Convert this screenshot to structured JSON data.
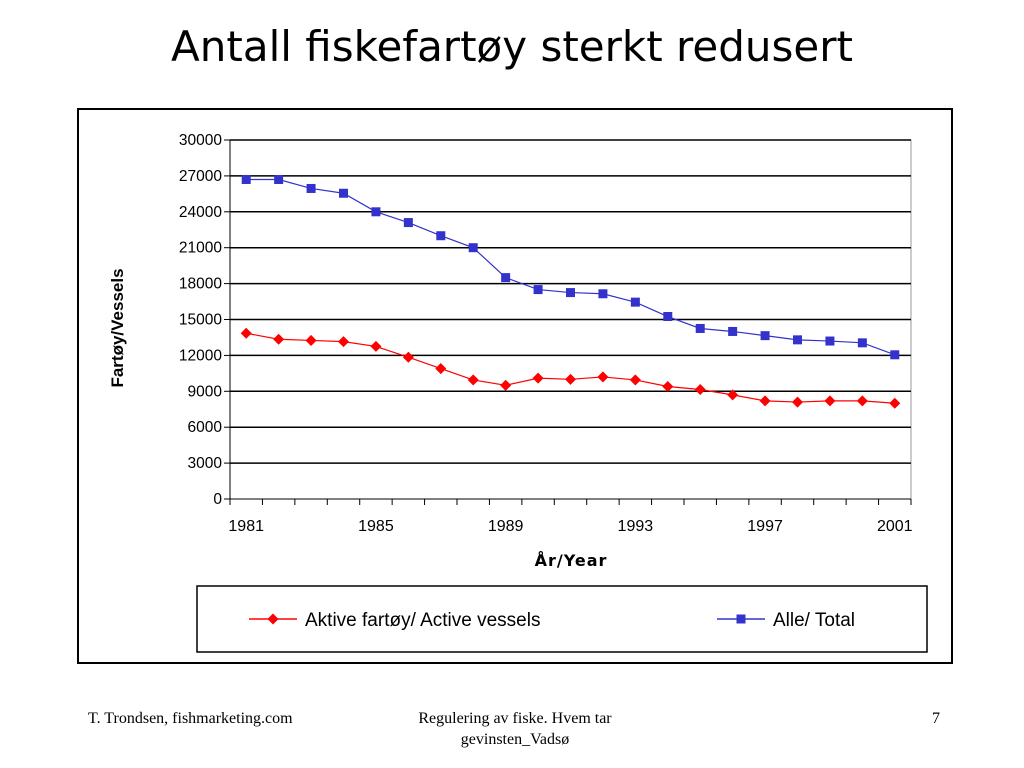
{
  "slide": {
    "title": "Antall fiskefartøy sterkt redusert",
    "footer_left": "T. Trondsen, fishmarketing.com",
    "footer_center": "Regulering av fiske. Hvem tar gevinsten_Vadsø",
    "page_number": "7"
  },
  "chart_data": {
    "type": "line",
    "title": "",
    "xlabel": "År/Year",
    "ylabel": "Fartøy/Vessels",
    "x": [
      1981,
      1982,
      1983,
      1984,
      1985,
      1986,
      1987,
      1988,
      1989,
      1990,
      1991,
      1992,
      1993,
      1994,
      1995,
      1996,
      1997,
      1998,
      1999,
      2000,
      2001
    ],
    "xticks": [
      "1981",
      "1985",
      "1989",
      "1993",
      "1997",
      "2001"
    ],
    "yticks": [
      "0",
      "3000",
      "6000",
      "9000",
      "12000",
      "15000",
      "18000",
      "21000",
      "24000",
      "27000",
      "30000"
    ],
    "ylim": [
      0,
      30000
    ],
    "grid": "horizontal",
    "legend_position": "bottom",
    "series": [
      {
        "name": "Aktive fartøy/ Active vessels",
        "color": "#ff0000",
        "marker": "diamond",
        "values": [
          13850,
          13350,
          13250,
          13150,
          12750,
          11850,
          10900,
          9950,
          9500,
          10100,
          10000,
          10200,
          9950,
          9400,
          9150,
          8700,
          8200,
          8100,
          8200,
          8200,
          8000
        ]
      },
      {
        "name": "Alle/ Total",
        "color": "#3333cc",
        "marker": "square",
        "values": [
          26700,
          26700,
          25950,
          25550,
          24000,
          23100,
          22000,
          21000,
          18500,
          17500,
          17250,
          17150,
          16450,
          15250,
          14250,
          14000,
          13650,
          13300,
          13200,
          13050,
          12050
        ]
      }
    ]
  }
}
